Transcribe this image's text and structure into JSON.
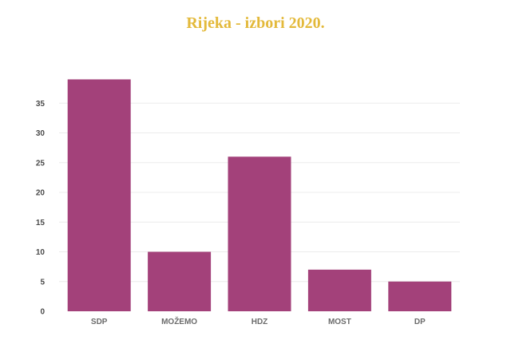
{
  "chart_data": {
    "type": "bar",
    "title": "Rijeka - izbori 2020.",
    "categories": [
      "SDP",
      "MOŽEMO",
      "HDZ",
      "MOST",
      "DP"
    ],
    "values": [
      39,
      10,
      26,
      7,
      5
    ],
    "xlabel": "",
    "ylabel": "",
    "ylim": [
      0,
      40
    ],
    "yticks": [
      0,
      5,
      10,
      15,
      20,
      25,
      30,
      35
    ],
    "grid": true,
    "legend": "none",
    "bar_color": "#a3417a",
    "title_color": "#e3b93a"
  }
}
